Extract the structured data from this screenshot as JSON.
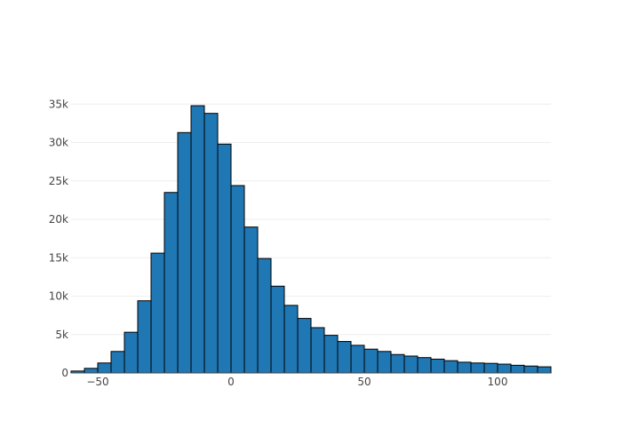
{
  "chart_data": {
    "type": "bar",
    "title": "",
    "xlabel": "",
    "ylabel": "",
    "bin_width": 5,
    "bin_start": -60,
    "xlim": [
      -60,
      120
    ],
    "ylim": [
      0,
      37000
    ],
    "grid": {
      "x": false,
      "y": true
    },
    "x_ticks": [
      -50,
      0,
      50,
      100
    ],
    "x_tick_labels": [
      "−50",
      "0",
      "50",
      "100"
    ],
    "y_ticks": [
      0,
      5000,
      10000,
      15000,
      20000,
      25000,
      30000,
      35000
    ],
    "y_tick_labels": [
      "0",
      "5k",
      "10k",
      "15k",
      "20k",
      "25k",
      "30k",
      "35k"
    ],
    "values": [
      250,
      600,
      1300,
      2800,
      5300,
      9400,
      15600,
      23500,
      31300,
      34800,
      33800,
      29800,
      24400,
      19000,
      14900,
      11300,
      8800,
      7100,
      5900,
      4900,
      4100,
      3600,
      3100,
      2800,
      2400,
      2200,
      2000,
      1800,
      1600,
      1400,
      1300,
      1250,
      1150,
      1000,
      900,
      800
    ],
    "bar_color": "#1f77b4"
  }
}
